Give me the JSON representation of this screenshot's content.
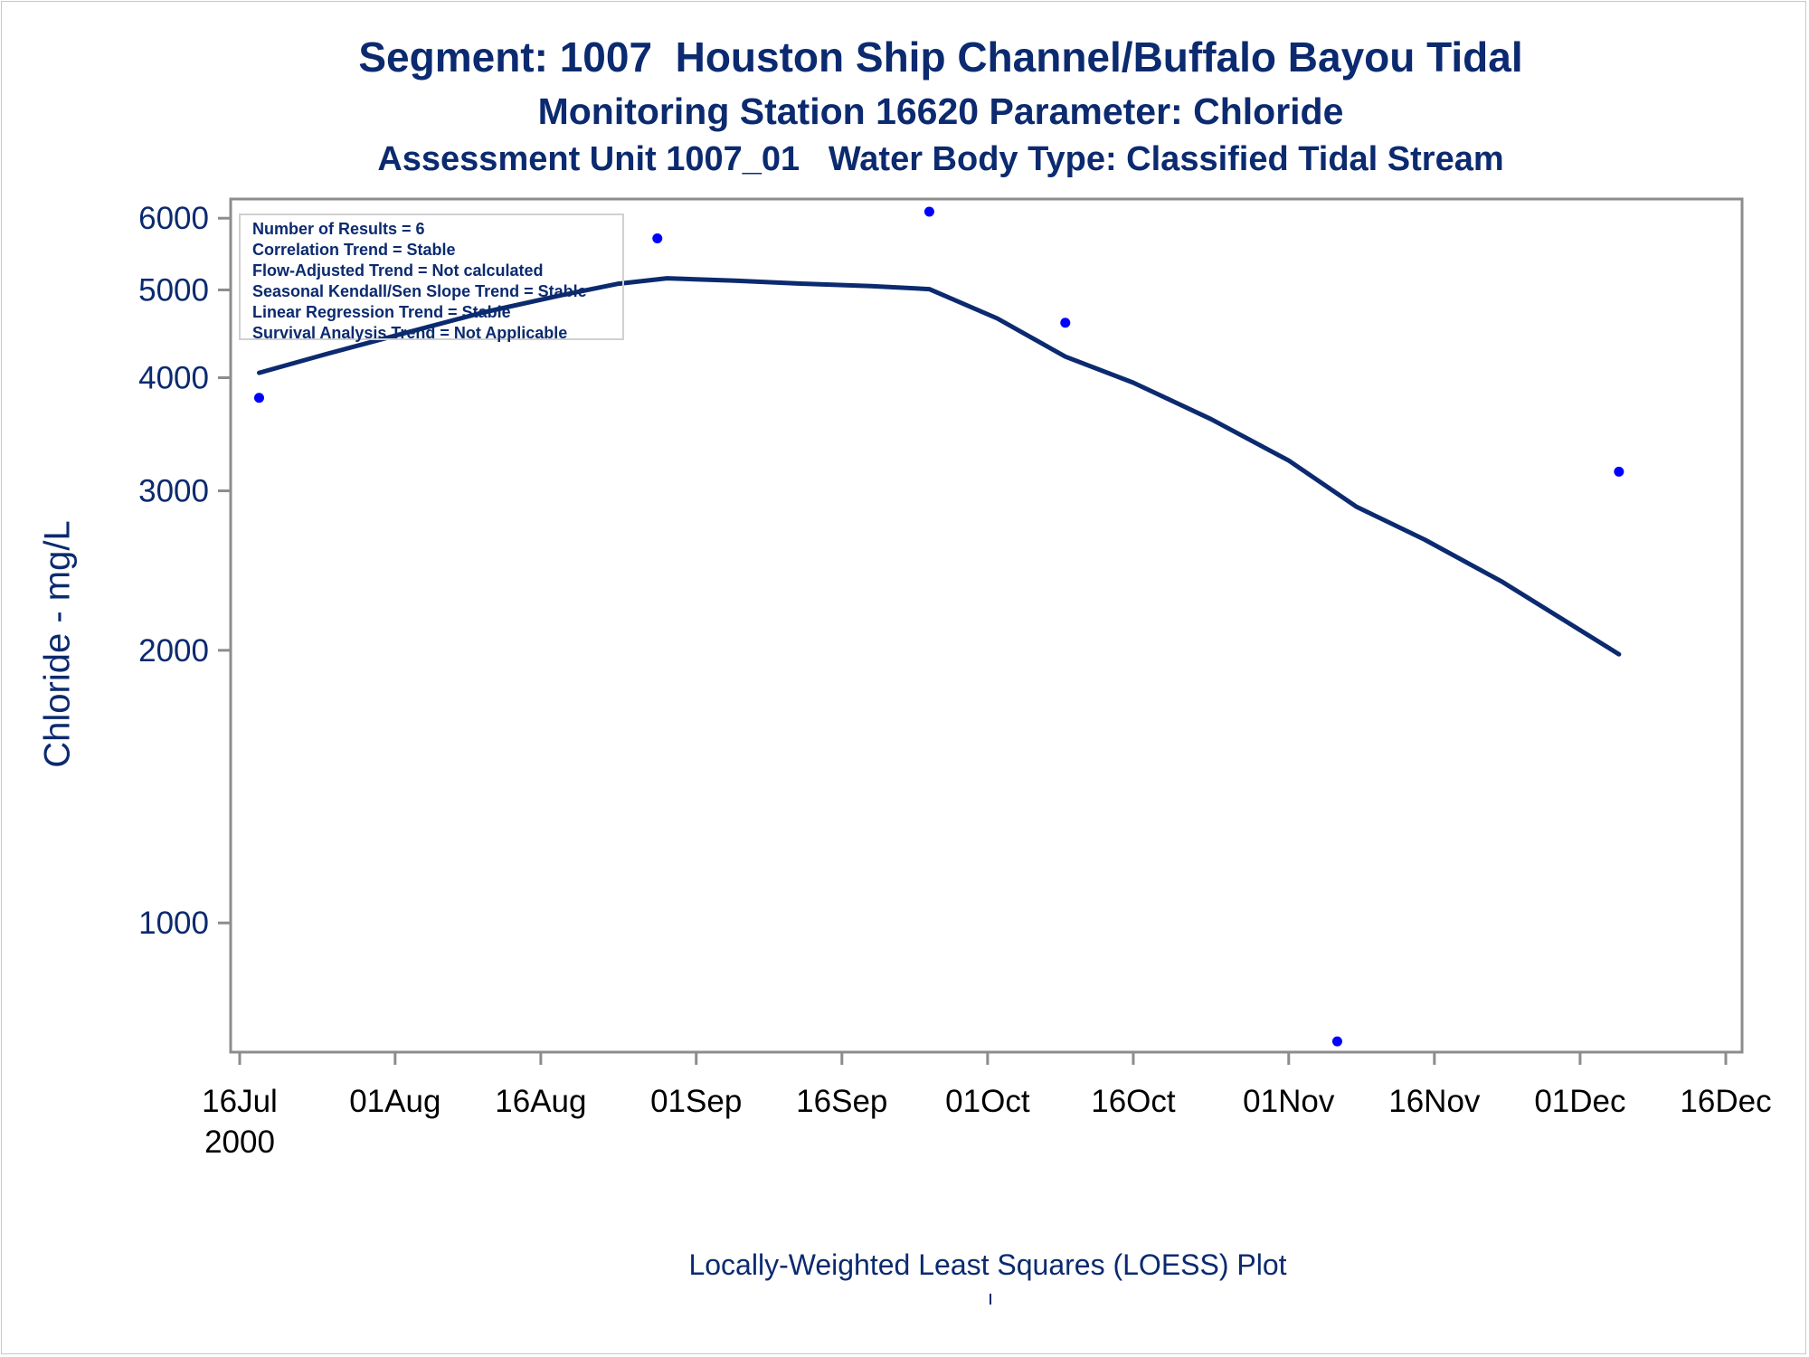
{
  "titles": {
    "line1": "Segment: 1007  Houston Ship Channel/Buffalo Bayou Tidal",
    "line2": "Monitoring Station 16620 Parameter: Chloride",
    "line3": "Assessment Unit 1007_01   Water Body Type: Classified Tidal Stream"
  },
  "footnote": "Locally-Weighted Least Squares (LOESS) Plot",
  "legend": [
    "Number of Results = 6",
    "Correlation Trend = Stable",
    "Flow-Adjusted Trend = Not calculated",
    "Seasonal Kendall/Sen Slope Trend = Stable",
    "Linear Regression Trend = Stable",
    "Survival Analysis Trend = Not Applicable"
  ],
  "colors": {
    "text": "#0b2a6f",
    "axis": "#8c8c8c",
    "points": "#0000ff",
    "line": "#0b2a6f"
  },
  "chart_data": {
    "type": "scatter",
    "ylabel": "Chloride - mg/L",
    "xlabel": "",
    "yscale": "log",
    "ylim": [
      720,
      6300
    ],
    "xlim": [
      "2000-07-15",
      "2000-12-17"
    ],
    "yticks": [
      1000,
      2000,
      3000,
      4000,
      5000,
      6000
    ],
    "xticks": [
      {
        "date": "2000-07-16",
        "label": "16Jul",
        "sublabel": "2000"
      },
      {
        "date": "2000-08-01",
        "label": "01Aug"
      },
      {
        "date": "2000-08-16",
        "label": "16Aug"
      },
      {
        "date": "2000-09-01",
        "label": "01Sep"
      },
      {
        "date": "2000-09-16",
        "label": "16Sep"
      },
      {
        "date": "2000-10-01",
        "label": "01Oct"
      },
      {
        "date": "2000-10-16",
        "label": "16Oct"
      },
      {
        "date": "2000-11-01",
        "label": "01Nov"
      },
      {
        "date": "2000-11-16",
        "label": "16Nov"
      },
      {
        "date": "2000-12-01",
        "label": "01Dec"
      },
      {
        "date": "2000-12-16",
        "label": "16Dec"
      }
    ],
    "points": [
      {
        "x": "2000-07-18",
        "y": 3800
      },
      {
        "x": "2000-08-28",
        "y": 5700
      },
      {
        "x": "2000-09-25",
        "y": 6100
      },
      {
        "x": "2000-10-09",
        "y": 4600
      },
      {
        "x": "2000-11-06",
        "y": 740
      },
      {
        "x": "2000-12-05",
        "y": 3150
      }
    ],
    "loess": [
      {
        "x": "2000-07-18",
        "y": 4050
      },
      {
        "x": "2000-07-25",
        "y": 4250
      },
      {
        "x": "2000-08-02",
        "y": 4480
      },
      {
        "x": "2000-08-10",
        "y": 4720
      },
      {
        "x": "2000-08-18",
        "y": 4930
      },
      {
        "x": "2000-08-24",
        "y": 5080
      },
      {
        "x": "2000-08-29",
        "y": 5150
      },
      {
        "x": "2000-09-05",
        "y": 5120
      },
      {
        "x": "2000-09-12",
        "y": 5080
      },
      {
        "x": "2000-09-19",
        "y": 5050
      },
      {
        "x": "2000-09-25",
        "y": 5010
      },
      {
        "x": "2000-10-02",
        "y": 4650
      },
      {
        "x": "2000-10-09",
        "y": 4220
      },
      {
        "x": "2000-10-16",
        "y": 3950
      },
      {
        "x": "2000-10-24",
        "y": 3600
      },
      {
        "x": "2000-11-01",
        "y": 3240
      },
      {
        "x": "2000-11-08",
        "y": 2880
      },
      {
        "x": "2000-11-15",
        "y": 2650
      },
      {
        "x": "2000-11-23",
        "y": 2380
      },
      {
        "x": "2000-12-05",
        "y": 1980
      }
    ]
  }
}
